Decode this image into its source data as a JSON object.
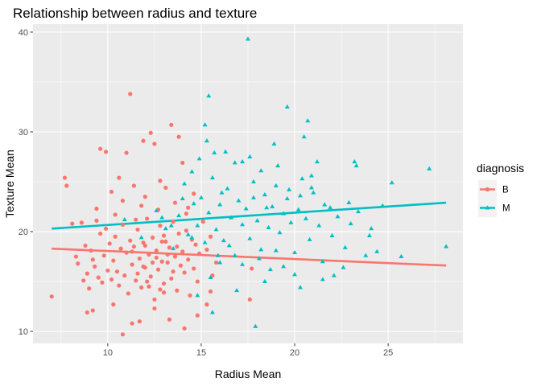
{
  "chart_data": {
    "type": "scatter",
    "title": "Relationship between radius and texture",
    "xlabel": "Radius Mean",
    "ylabel": "Texture Mean",
    "xlim": [
      6.0,
      29.0
    ],
    "ylim": [
      8.8,
      40.8
    ],
    "x_ticks": [
      "10",
      "15",
      "20",
      "25"
    ],
    "y_ticks": [
      "10",
      "20",
      "30",
      "40"
    ],
    "grid": true,
    "legend": {
      "title": "diagnosis",
      "position": "right"
    },
    "series": [
      {
        "name": "B",
        "color": "#F8766D",
        "marker": "circle",
        "trend": {
          "x": [
            7.0,
            28.1
          ],
          "y": [
            18.3,
            16.6
          ]
        },
        "points": [
          [
            7.0,
            13.5
          ],
          [
            7.7,
            25.4
          ],
          [
            7.8,
            24.6
          ],
          [
            8.1,
            20.8
          ],
          [
            8.3,
            17.5
          ],
          [
            8.4,
            16.8
          ],
          [
            8.6,
            20.9
          ],
          [
            8.7,
            15.1
          ],
          [
            8.8,
            18.6
          ],
          [
            8.9,
            15.8
          ],
          [
            9.0,
            14.3
          ],
          [
            9.1,
            18.1
          ],
          [
            9.2,
            17.2
          ],
          [
            9.3,
            16.5
          ],
          [
            9.4,
            21.1
          ],
          [
            9.5,
            15.4
          ],
          [
            9.6,
            19.8
          ],
          [
            9.7,
            14.9
          ],
          [
            9.8,
            17.6
          ],
          [
            9.9,
            20.3
          ],
          [
            10.0,
            16.1
          ],
          [
            10.1,
            18.8
          ],
          [
            10.2,
            15.2
          ],
          [
            10.3,
            17.1
          ],
          [
            10.4,
            19.5
          ],
          [
            10.5,
            16.0
          ],
          [
            10.6,
            14.6
          ],
          [
            10.7,
            18.3
          ],
          [
            10.8,
            20.7
          ],
          [
            10.9,
            15.6
          ],
          [
            11.0,
            17.9
          ],
          [
            11.1,
            13.8
          ],
          [
            11.2,
            19.1
          ],
          [
            11.3,
            16.7
          ],
          [
            11.4,
            18.5
          ],
          [
            11.5,
            15.1
          ],
          [
            11.6,
            20.2
          ],
          [
            11.7,
            17.3
          ],
          [
            11.8,
            14.4
          ],
          [
            11.9,
            18.9
          ],
          [
            12.0,
            16.4
          ],
          [
            12.1,
            21.3
          ],
          [
            12.2,
            17.7
          ],
          [
            12.3,
            15.5
          ],
          [
            12.4,
            19.4
          ],
          [
            12.5,
            13.2
          ],
          [
            12.6,
            18.1
          ],
          [
            12.7,
            16.2
          ],
          [
            12.8,
            20.6
          ],
          [
            12.9,
            17.0
          ],
          [
            13.0,
            14.8
          ],
          [
            13.1,
            19.0
          ],
          [
            13.2,
            16.9
          ],
          [
            13.3,
            18.4
          ],
          [
            13.4,
            15.3
          ],
          [
            13.5,
            21.0
          ],
          [
            13.6,
            17.5
          ],
          [
            13.7,
            14.1
          ],
          [
            13.8,
            19.8
          ],
          [
            13.9,
            16.6
          ],
          [
            14.0,
            18.0
          ],
          [
            14.1,
            15.9
          ],
          [
            14.2,
            20.1
          ],
          [
            14.3,
            17.2
          ],
          [
            14.4,
            13.6
          ],
          [
            14.5,
            19.2
          ],
          [
            14.6,
            16.3
          ],
          [
            14.7,
            18.7
          ],
          [
            14.8,
            15.0
          ],
          [
            14.9,
            17.8
          ],
          [
            11.2,
            33.8
          ],
          [
            12.3,
            29.9
          ],
          [
            13.4,
            30.7
          ],
          [
            9.6,
            28.3
          ],
          [
            9.9,
            28.0
          ],
          [
            11.0,
            27.9
          ],
          [
            11.9,
            29.1
          ],
          [
            12.5,
            28.8
          ],
          [
            13.8,
            29.5
          ],
          [
            10.6,
            25.4
          ],
          [
            11.4,
            24.6
          ],
          [
            12.8,
            25.1
          ],
          [
            14.0,
            26.9
          ],
          [
            10.2,
            24.0
          ],
          [
            13.1,
            24.4
          ],
          [
            12.0,
            23.5
          ],
          [
            10.8,
            23.1
          ],
          [
            14.6,
            23.8
          ],
          [
            9.4,
            22.3
          ],
          [
            11.8,
            22.6
          ],
          [
            13.6,
            22.9
          ],
          [
            12.7,
            22.2
          ],
          [
            14.2,
            21.8
          ],
          [
            10.4,
            21.7
          ],
          [
            11.5,
            21.2
          ],
          [
            9.2,
            12.1
          ],
          [
            8.9,
            11.9
          ],
          [
            10.3,
            12.7
          ],
          [
            11.3,
            10.8
          ],
          [
            10.8,
            9.7
          ],
          [
            11.7,
            11.0
          ],
          [
            12.5,
            12.3
          ],
          [
            13.3,
            11.2
          ],
          [
            14.1,
            10.3
          ],
          [
            14.8,
            11.6
          ],
          [
            15.3,
            12.7
          ],
          [
            15.5,
            14.0
          ],
          [
            15.6,
            15.6
          ],
          [
            15.8,
            16.9
          ],
          [
            15.3,
            18.2
          ],
          [
            15.5,
            19.5
          ],
          [
            17.6,
            13.2
          ],
          [
            17.7,
            16.3
          ],
          [
            15.1,
            21.0
          ],
          [
            14.3,
            22.4
          ],
          [
            13.0,
            13.9
          ],
          [
            12.2,
            14.5
          ],
          [
            11.6,
            15.8
          ],
          [
            12.4,
            16.9
          ],
          [
            13.2,
            17.7
          ],
          [
            12.0,
            18.6
          ],
          [
            12.9,
            19.0
          ],
          [
            11.3,
            18.0
          ],
          [
            12.6,
            17.4
          ],
          [
            13.5,
            16.0
          ],
          [
            12.1,
            15.0
          ],
          [
            13.7,
            18.5
          ],
          [
            12.8,
            14.2
          ],
          [
            11.9,
            16.5
          ],
          [
            13.0,
            19.6
          ]
        ]
      },
      {
        "name": "M",
        "color": "#00BFC4",
        "marker": "triangle",
        "trend": {
          "x": [
            7.0,
            28.1
          ],
          "y": [
            20.3,
            22.9
          ]
        },
        "points": [
          [
            10.9,
            21.2
          ],
          [
            11.8,
            19.4
          ],
          [
            12.6,
            22.1
          ],
          [
            13.1,
            20.3
          ],
          [
            13.5,
            18.3
          ],
          [
            13.8,
            21.6
          ],
          [
            14.1,
            24.8
          ],
          [
            14.3,
            19.7
          ],
          [
            14.6,
            22.8
          ],
          [
            14.8,
            20.6
          ],
          [
            15.0,
            23.4
          ],
          [
            15.2,
            18.9
          ],
          [
            15.4,
            21.9
          ],
          [
            15.6,
            25.4
          ],
          [
            15.8,
            20.2
          ],
          [
            16.0,
            22.7
          ],
          [
            16.2,
            19.1
          ],
          [
            16.4,
            24.3
          ],
          [
            16.6,
            21.4
          ],
          [
            16.8,
            17.6
          ],
          [
            17.0,
            23.1
          ],
          [
            17.2,
            20.7
          ],
          [
            17.4,
            22.3
          ],
          [
            17.6,
            19.3
          ],
          [
            17.8,
            25.0
          ],
          [
            18.0,
            21.1
          ],
          [
            18.2,
            18.2
          ],
          [
            18.4,
            23.7
          ],
          [
            18.6,
            20.4
          ],
          [
            18.8,
            22.5
          ],
          [
            19.0,
            24.6
          ],
          [
            19.2,
            19.9
          ],
          [
            19.4,
            21.8
          ],
          [
            19.6,
            23.3
          ],
          [
            19.8,
            20.9
          ],
          [
            20.0,
            17.9
          ],
          [
            20.2,
            22.2
          ],
          [
            20.4,
            25.3
          ],
          [
            20.6,
            21.3
          ],
          [
            20.8,
            19.2
          ],
          [
            21.0,
            23.9
          ],
          [
            21.3,
            20.6
          ],
          [
            21.6,
            22.7
          ],
          [
            22.0,
            19.6
          ],
          [
            22.3,
            21.5
          ],
          [
            22.7,
            18.4
          ],
          [
            23.0,
            20.8
          ],
          [
            23.4,
            22.0
          ],
          [
            23.8,
            17.6
          ],
          [
            24.1,
            20.3
          ],
          [
            24.4,
            18.0
          ],
          [
            24.7,
            22.6
          ],
          [
            25.2,
            24.9
          ],
          [
            25.7,
            17.5
          ],
          [
            27.2,
            26.3
          ],
          [
            28.1,
            18.5
          ],
          [
            23.2,
            27.0
          ],
          [
            23.3,
            26.6
          ],
          [
            19.6,
            32.5
          ],
          [
            20.7,
            31.1
          ],
          [
            15.4,
            33.6
          ],
          [
            17.5,
            39.3
          ],
          [
            15.2,
            30.7
          ],
          [
            15.3,
            29.1
          ],
          [
            20.5,
            29.5
          ],
          [
            18.9,
            28.8
          ],
          [
            16.3,
            28.0
          ],
          [
            17.6,
            27.5
          ],
          [
            21.2,
            27.0
          ],
          [
            19.1,
            26.6
          ],
          [
            16.8,
            26.9
          ],
          [
            14.9,
            27.3
          ],
          [
            18.2,
            26.1
          ],
          [
            20.9,
            25.6
          ],
          [
            14.5,
            26.0
          ],
          [
            15.7,
            27.9
          ],
          [
            17.2,
            27.0
          ],
          [
            21.9,
            22.4
          ],
          [
            20.3,
            23.6
          ],
          [
            17.8,
            23.4
          ],
          [
            15.5,
            15.4
          ],
          [
            16.0,
            16.9
          ],
          [
            17.2,
            16.7
          ],
          [
            18.7,
            16.2
          ],
          [
            19.4,
            16.5
          ],
          [
            20.0,
            15.7
          ],
          [
            21.5,
            17.0
          ],
          [
            22.1,
            15.6
          ],
          [
            20.3,
            14.4
          ],
          [
            21.5,
            15.2
          ],
          [
            17.9,
            10.5
          ],
          [
            15.6,
            11.9
          ],
          [
            14.8,
            13.6
          ],
          [
            16.9,
            14.1
          ],
          [
            18.4,
            15.0
          ],
          [
            22.6,
            16.4
          ],
          [
            18.1,
            17.3
          ],
          [
            19.0,
            18.1
          ],
          [
            16.5,
            18.6
          ],
          [
            15.9,
            17.6
          ],
          [
            24.0,
            19.6
          ],
          [
            22.9,
            22.9
          ],
          [
            20.9,
            24.4
          ],
          [
            19.7,
            24.2
          ],
          [
            18.5,
            22.4
          ],
          [
            16.1,
            23.9
          ],
          [
            14.0,
            23.3
          ],
          [
            13.4,
            20.6
          ],
          [
            12.9,
            21.4
          ],
          [
            14.5,
            19.4
          ]
        ]
      }
    ]
  }
}
